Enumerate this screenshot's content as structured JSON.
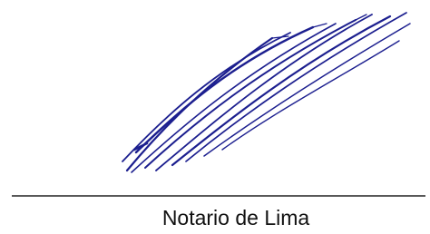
{
  "signature": {
    "caption": "Notario de Lima"
  }
}
